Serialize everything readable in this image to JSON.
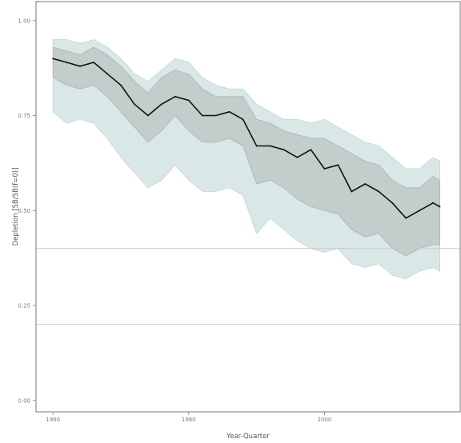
{
  "chart_data": {
    "type": "area",
    "xlabel": "Year-Quarter",
    "ylabel": "Depletion [SB/SB(f=0)]",
    "xlim": [
      1957.5,
      2020
    ],
    "ylim": [
      -0.03,
      1.05
    ],
    "x_ticks": [
      1960,
      1980,
      2000
    ],
    "x_tick_labels": [
      "1960",
      "1980",
      "2000"
    ],
    "y_ticks": [
      0.0,
      0.25,
      0.5,
      0.75,
      1.0
    ],
    "y_tick_labels": [
      "0.00",
      "0.25",
      "0.50",
      "0.75",
      "1.00"
    ],
    "grid": false,
    "reference_lines": [
      0.4,
      0.2
    ],
    "series": [
      {
        "role": "outer-band",
        "x": [
          1960,
          1962,
          1964,
          1966,
          1968,
          1970,
          1972,
          1974,
          1976,
          1978,
          1980,
          1982,
          1984,
          1986,
          1988,
          1990,
          1992,
          1994,
          1996,
          1998,
          2000,
          2002,
          2004,
          2006,
          2008,
          2010,
          2012,
          2014,
          2016,
          2017
        ],
        "upper": [
          0.95,
          0.95,
          0.94,
          0.95,
          0.93,
          0.9,
          0.86,
          0.84,
          0.87,
          0.9,
          0.89,
          0.85,
          0.83,
          0.82,
          0.82,
          0.78,
          0.76,
          0.74,
          0.74,
          0.73,
          0.74,
          0.72,
          0.7,
          0.68,
          0.67,
          0.64,
          0.61,
          0.61,
          0.64,
          0.63
        ],
        "lower": [
          0.76,
          0.73,
          0.74,
          0.73,
          0.69,
          0.64,
          0.6,
          0.56,
          0.58,
          0.62,
          0.58,
          0.55,
          0.55,
          0.56,
          0.54,
          0.44,
          0.48,
          0.45,
          0.42,
          0.4,
          0.39,
          0.4,
          0.36,
          0.35,
          0.36,
          0.33,
          0.32,
          0.34,
          0.35,
          0.34
        ]
      },
      {
        "role": "inner-band",
        "x": [
          1960,
          1962,
          1964,
          1966,
          1968,
          1970,
          1972,
          1974,
          1976,
          1978,
          1980,
          1982,
          1984,
          1986,
          1988,
          1990,
          1992,
          1994,
          1996,
          1998,
          2000,
          2002,
          2004,
          2006,
          2008,
          2010,
          2012,
          2014,
          2016,
          2017
        ],
        "upper": [
          0.93,
          0.92,
          0.91,
          0.93,
          0.91,
          0.88,
          0.84,
          0.81,
          0.85,
          0.87,
          0.86,
          0.82,
          0.8,
          0.8,
          0.8,
          0.74,
          0.73,
          0.71,
          0.7,
          0.69,
          0.69,
          0.67,
          0.65,
          0.63,
          0.62,
          0.58,
          0.56,
          0.56,
          0.59,
          0.58
        ],
        "lower": [
          0.85,
          0.83,
          0.82,
          0.83,
          0.8,
          0.76,
          0.72,
          0.68,
          0.71,
          0.75,
          0.71,
          0.68,
          0.68,
          0.69,
          0.67,
          0.57,
          0.58,
          0.56,
          0.53,
          0.51,
          0.5,
          0.49,
          0.45,
          0.43,
          0.44,
          0.4,
          0.38,
          0.4,
          0.41,
          0.41
        ]
      },
      {
        "role": "median-line",
        "x": [
          1960,
          1962,
          1964,
          1966,
          1968,
          1970,
          1972,
          1974,
          1976,
          1978,
          1980,
          1982,
          1984,
          1986,
          1988,
          1990,
          1992,
          1994,
          1996,
          1998,
          2000,
          2002,
          2004,
          2006,
          2008,
          2010,
          2012,
          2014,
          2016,
          2017
        ],
        "values": [
          0.9,
          0.89,
          0.88,
          0.89,
          0.86,
          0.83,
          0.78,
          0.75,
          0.78,
          0.8,
          0.79,
          0.75,
          0.75,
          0.76,
          0.74,
          0.67,
          0.67,
          0.66,
          0.64,
          0.66,
          0.61,
          0.62,
          0.55,
          0.57,
          0.55,
          0.52,
          0.48,
          0.5,
          0.52,
          0.51
        ]
      }
    ],
    "colors": {
      "outer_band": "#d9e8e7",
      "outer_band_edge": "#c3d5d4",
      "inner_band": "#c2cdcc",
      "inner_band_edge": "#a9b4b3",
      "line": "#111111",
      "reference_line": "#c9c9c9",
      "panel_border": "#555555"
    }
  }
}
